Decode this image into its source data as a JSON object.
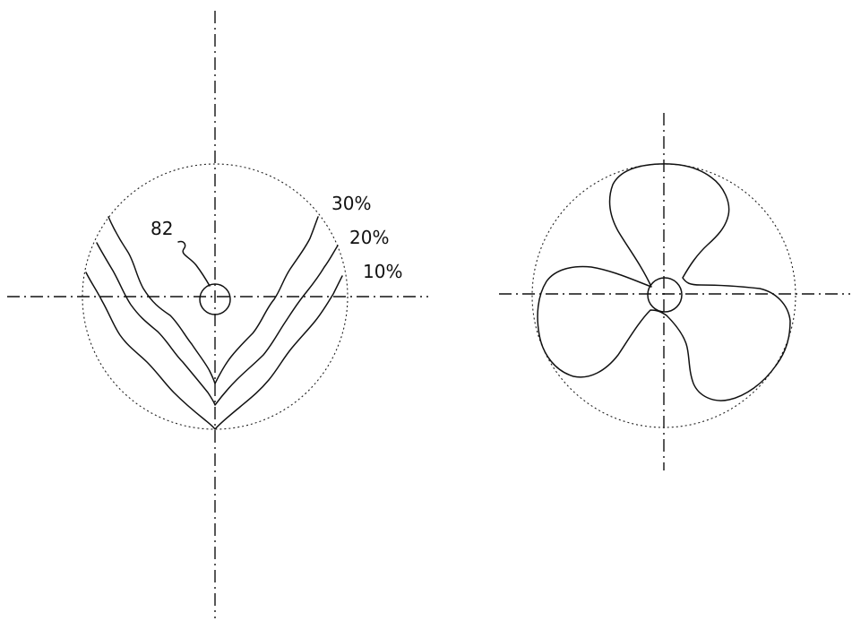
{
  "figure": {
    "left": {
      "reference_label": "82",
      "contour_labels": [
        "30%",
        "20%",
        "10%"
      ]
    }
  }
}
